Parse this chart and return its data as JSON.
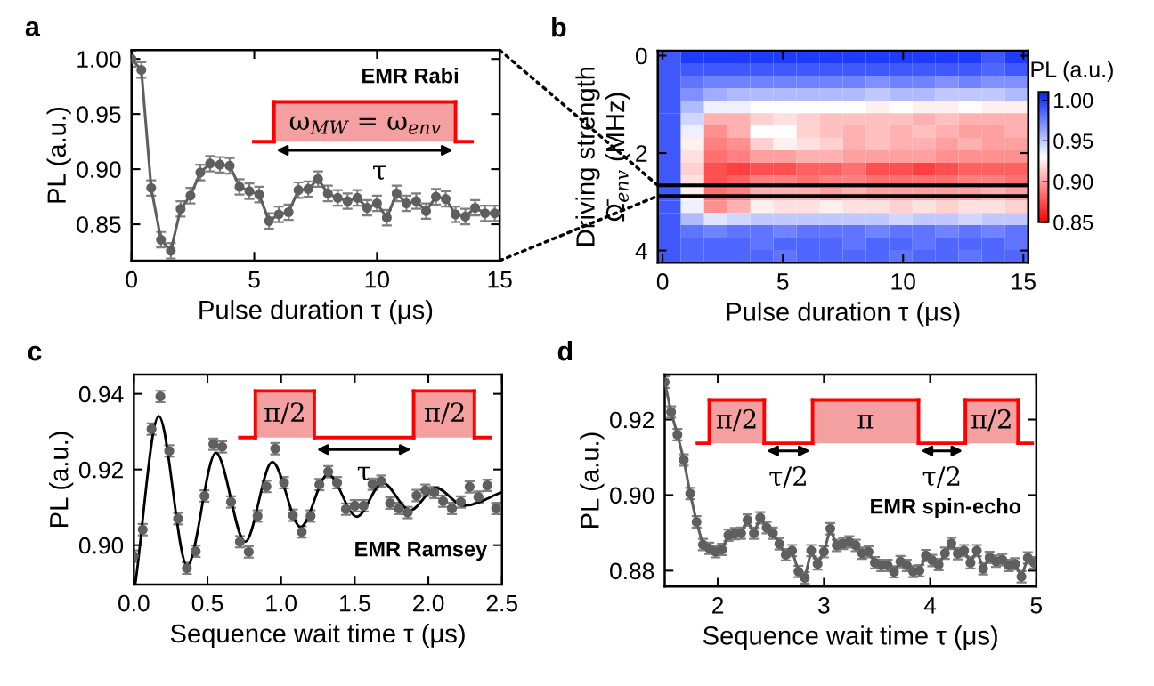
{
  "chart_data": [
    {
      "type": "line",
      "title": "a",
      "xlabel": "Pulse duration τ (μs)",
      "ylabel": "PL (a.u.)",
      "xlim": [
        0,
        15
      ],
      "xticks": [
        0,
        5,
        10,
        15
      ],
      "ylim": [
        0.817,
        1.008
      ],
      "yticks": [
        {
          "value": 0.85,
          "label": "0.85"
        },
        {
          "value": 0.9,
          "label": "0.90"
        },
        {
          "value": 0.95,
          "label": "0.95"
        },
        {
          "value": 1.0,
          "label": "1.00"
        }
      ],
      "marker": "circle",
      "grid": false,
      "legend": false,
      "annotations": [
        "EMR Rabi",
        "ω$_{MW}$ = ω$_{env}$",
        "τ"
      ],
      "series": [
        {
          "color": "#5f5f5f",
          "x": [
            0,
            0.4,
            0.8,
            1.2,
            1.6,
            2.0,
            2.4,
            2.8,
            3.2,
            3.6,
            4.0,
            4.4,
            4.8,
            5.2,
            5.6,
            6.0,
            6.4,
            6.8,
            7.2,
            7.6,
            8.0,
            8.4,
            8.8,
            9.2,
            9.6,
            10.0,
            10.4,
            10.8,
            11.2,
            11.6,
            12.0,
            12.4,
            12.8,
            13.2,
            13.6,
            14.0,
            14.4,
            14.8
          ],
          "values": [
            1.0,
            0.99,
            0.883,
            0.836,
            0.826,
            0.864,
            0.876,
            0.897,
            0.905,
            0.904,
            0.903,
            0.884,
            0.88,
            0.877,
            0.853,
            0.859,
            0.861,
            0.881,
            0.882,
            0.891,
            0.878,
            0.874,
            0.871,
            0.874,
            0.865,
            0.869,
            0.856,
            0.878,
            0.869,
            0.871,
            0.862,
            0.875,
            0.873,
            0.859,
            0.857,
            0.865,
            0.86,
            0.86
          ],
          "errors": [
            0.007,
            0.007,
            0.007,
            0.007,
            0.007,
            0.007,
            0.007,
            0.007,
            0.007,
            0.007,
            0.007,
            0.007,
            0.007,
            0.007,
            0.007,
            0.007,
            0.007,
            0.007,
            0.007,
            0.007,
            0.007,
            0.007,
            0.007,
            0.007,
            0.007,
            0.007,
            0.007,
            0.007,
            0.007,
            0.007,
            0.007,
            0.007,
            0.007,
            0.007,
            0.007,
            0.007,
            0.007,
            0.007
          ]
        }
      ]
    },
    {
      "type": "heatmap",
      "title": "b",
      "xlabel": "Pulse duration τ (μs)",
      "ylabel": "Driving strength\nΩ̄$_{env}$ (MHz)",
      "clabel": "PL (a.u.)",
      "xlim": [
        -0.2,
        15.2
      ],
      "xticks": [
        0,
        5,
        10,
        15
      ],
      "ylim": [
        4.25,
        -0.1
      ],
      "yticks": [
        0,
        2,
        4
      ],
      "clim": [
        0.85,
        1.01
      ],
      "cticks": [
        {
          "value": 0.85,
          "label": "0.85"
        },
        {
          "value": 0.9,
          "label": "0.90"
        },
        {
          "value": 0.95,
          "label": "0.95"
        },
        {
          "value": 1.0,
          "label": "1.00"
        }
      ],
      "ref_lines": [
        {
          "axis": "y",
          "value": 2.66,
          "color": "#000000"
        },
        {
          "axis": "y",
          "value": 2.88,
          "color": "#000000"
        }
      ],
      "x": [
        0.28,
        1.24,
        2.21,
        3.17,
        4.13,
        5.09,
        6.06,
        7.02,
        7.98,
        8.94,
        9.91,
        10.87,
        11.83,
        12.79,
        13.76,
        14.72
      ],
      "y": [
        0.03,
        0.28,
        0.54,
        0.79,
        1.05,
        1.31,
        1.56,
        1.82,
        2.07,
        2.33,
        2.58,
        2.84,
        3.1,
        3.35,
        3.61,
        3.86,
        4.12
      ],
      "cells": [
        [
          0.99,
          1.0,
          1.0,
          1.0,
          1.0,
          1.0,
          1.0,
          1.0,
          1.0,
          1.0,
          1.0,
          1.0,
          1.0,
          1.0,
          0.99,
          1.0
        ],
        [
          0.99,
          0.99,
          0.99,
          0.99,
          0.99,
          0.99,
          0.99,
          0.99,
          0.99,
          0.99,
          0.99,
          0.99,
          0.99,
          0.99,
          0.985,
          0.99
        ],
        [
          0.99,
          0.98,
          0.975,
          0.975,
          0.975,
          0.975,
          0.975,
          0.975,
          0.975,
          0.97,
          0.975,
          0.975,
          0.97,
          0.975,
          0.97,
          0.97
        ],
        [
          0.99,
          0.97,
          0.96,
          0.955,
          0.955,
          0.955,
          0.955,
          0.955,
          0.955,
          0.95,
          0.955,
          0.955,
          0.95,
          0.95,
          0.95,
          0.955
        ],
        [
          0.99,
          0.955,
          0.935,
          0.935,
          0.93,
          0.93,
          0.93,
          0.93,
          0.93,
          0.925,
          0.93,
          0.925,
          0.925,
          0.93,
          0.925,
          0.925
        ],
        [
          0.99,
          0.945,
          0.905,
          0.905,
          0.915,
          0.92,
          0.915,
          0.91,
          0.91,
          0.91,
          0.91,
          0.905,
          0.91,
          0.905,
          0.905,
          0.905
        ],
        [
          0.99,
          0.935,
          0.895,
          0.905,
          0.93,
          0.93,
          0.915,
          0.91,
          0.905,
          0.91,
          0.905,
          0.91,
          0.905,
          0.9,
          0.9,
          0.905
        ],
        [
          0.99,
          0.925,
          0.89,
          0.895,
          0.915,
          0.925,
          0.92,
          0.915,
          0.905,
          0.91,
          0.905,
          0.905,
          0.9,
          0.905,
          0.9,
          0.9
        ],
        [
          0.99,
          0.92,
          0.885,
          0.89,
          0.9,
          0.9,
          0.905,
          0.905,
          0.9,
          0.9,
          0.9,
          0.9,
          0.895,
          0.895,
          0.895,
          0.895
        ],
        [
          0.99,
          0.915,
          0.875,
          0.87,
          0.875,
          0.875,
          0.88,
          0.88,
          0.885,
          0.875,
          0.875,
          0.87,
          0.875,
          0.88,
          0.88,
          0.88
        ],
        [
          0.99,
          0.92,
          0.875,
          0.88,
          0.89,
          0.89,
          0.885,
          0.89,
          0.89,
          0.885,
          0.885,
          0.885,
          0.885,
          0.89,
          0.89,
          0.885
        ],
        [
          0.99,
          0.925,
          0.885,
          0.89,
          0.905,
          0.905,
          0.905,
          0.9,
          0.905,
          0.9,
          0.9,
          0.9,
          0.9,
          0.9,
          0.905,
          0.9
        ],
        [
          0.99,
          0.935,
          0.895,
          0.905,
          0.925,
          0.92,
          0.92,
          0.925,
          0.92,
          0.92,
          0.915,
          0.92,
          0.915,
          0.92,
          0.92,
          0.915
        ],
        [
          0.99,
          0.955,
          0.94,
          0.945,
          0.95,
          0.95,
          0.95,
          0.95,
          0.95,
          0.95,
          0.945,
          0.95,
          0.95,
          0.945,
          0.95,
          0.95
        ],
        [
          0.99,
          0.98,
          0.975,
          0.98,
          0.98,
          0.975,
          0.98,
          0.98,
          0.98,
          0.975,
          0.98,
          0.98,
          0.975,
          0.98,
          0.975,
          0.98
        ],
        [
          0.99,
          0.985,
          0.985,
          0.985,
          0.98,
          0.985,
          0.985,
          0.985,
          0.98,
          0.985,
          0.985,
          0.98,
          0.985,
          0.985,
          0.985,
          0.98
        ],
        [
          0.99,
          0.985,
          0.985,
          0.985,
          0.985,
          0.98,
          0.985,
          0.985,
          0.985,
          0.985,
          0.98,
          0.985,
          0.985,
          0.98,
          0.985,
          0.985
        ]
      ]
    },
    {
      "type": "scatter",
      "title": "c",
      "xlabel": "Sequence wait time τ (μs)",
      "ylabel": "PL (a.u.)",
      "xlim": [
        0,
        2.5
      ],
      "xticks": [
        {
          "value": 0,
          "label": "0.0"
        },
        {
          "value": 0.5,
          "label": "0.5"
        },
        {
          "value": 1.0,
          "label": "1.0"
        },
        {
          "value": 1.5,
          "label": "1.5"
        },
        {
          "value": 2.0,
          "label": "2.0"
        },
        {
          "value": 2.5,
          "label": "2.5"
        }
      ],
      "ylim": [
        0.8896,
        0.9451
      ],
      "yticks": [
        {
          "value": 0.9,
          "label": "0.90"
        },
        0.92,
        0.94
      ],
      "marker": "circle",
      "grid": false,
      "legend": false,
      "annotations": [
        "EMR Ramsey",
        "π/2",
        "π/2",
        "τ"
      ],
      "series": [
        {
          "type": "scatter",
          "color": "#5f5f5f",
          "x": [
            0.0,
            0.06,
            0.12,
            0.18,
            0.24,
            0.3,
            0.36,
            0.42,
            0.48,
            0.54,
            0.6,
            0.66,
            0.72,
            0.78,
            0.84,
            0.9,
            0.96,
            1.02,
            1.08,
            1.14,
            1.2,
            1.26,
            1.32,
            1.38,
            1.44,
            1.5,
            1.56,
            1.62,
            1.68,
            1.74,
            1.8,
            1.86,
            1.92,
            1.98,
            2.04,
            2.1,
            2.16,
            2.22,
            2.28,
            2.34,
            2.4,
            2.46
          ],
          "values": [
            0.8971,
            0.9041,
            0.9307,
            0.9393,
            0.9249,
            0.907,
            0.8939,
            0.8984,
            0.913,
            0.9267,
            0.926,
            0.9114,
            0.9009,
            0.8982,
            0.9077,
            0.9155,
            0.9255,
            0.9165,
            0.9079,
            0.9035,
            0.9077,
            0.916,
            0.9194,
            0.9165,
            0.9095,
            0.9104,
            0.9104,
            0.9161,
            0.9169,
            0.9111,
            0.9097,
            0.9086,
            0.9131,
            0.9145,
            0.9139,
            0.9116,
            0.9097,
            0.9114,
            0.9154,
            0.9127,
            0.9158,
            0.9097
          ],
          "errors": [
            0.0015,
            0.0015,
            0.0015,
            0.0015,
            0.0015,
            0.0015,
            0.0015,
            0.0015,
            0.0015,
            0.0015,
            0.0015,
            0.0015,
            0.0015,
            0.0015,
            0.0015,
            0.0015,
            0.0015,
            0.0015,
            0.0015,
            0.0015,
            0.0015,
            0.0015,
            0.0015,
            0.0015,
            0.0015,
            0.0015,
            0.0015,
            0.0015,
            0.0015,
            0.0015,
            0.0015,
            0.0015,
            0.0015,
            0.0015,
            0.0015,
            0.0015,
            0.0015,
            0.0015,
            0.0015,
            0.0015,
            0.0015,
            0.0015
          ]
        },
        {
          "type": "line",
          "marker": "none",
          "color": "#000000",
          "x": [
            0.01,
            0.169,
            0.362,
            0.557,
            0.756,
            0.94,
            1.132,
            1.318,
            1.515,
            1.689,
            1.875,
            2.053,
            2.241,
            2.5
          ],
          "values": [
            0.8898,
            0.9341,
            0.8946,
            0.9244,
            0.9009,
            0.922,
            0.9048,
            0.9187,
            0.9075,
            0.9165,
            0.9092,
            0.9151,
            0.9104,
            0.914
          ]
        }
      ]
    },
    {
      "type": "line",
      "title": "d",
      "xlabel": "Sequence wait time τ (μs)",
      "ylabel": "PL (a.u.)",
      "xlim": [
        1.5,
        5
      ],
      "xticks": [
        2,
        3,
        4,
        5
      ],
      "ylim": [
        0.8758,
        0.9319
      ],
      "yticks": [
        {
          "value": 0.88,
          "label": "0.88"
        },
        {
          "value": 0.9,
          "label": "0.90"
        },
        {
          "value": 0.92,
          "label": "0.92"
        }
      ],
      "marker": "circle",
      "grid": false,
      "legend": false,
      "annotations": [
        "EMR spin-echo",
        "π/2",
        "π",
        "π/2",
        "τ/2",
        "τ/2"
      ],
      "series": [
        {
          "color": "#5f5f5f",
          "x": [
            1.5,
            1.56,
            1.62,
            1.68,
            1.74,
            1.8,
            1.86,
            1.92,
            1.98,
            2.04,
            2.1,
            2.16,
            2.22,
            2.28,
            2.34,
            2.4,
            2.46,
            2.52,
            2.58,
            2.64,
            2.7,
            2.76,
            2.82,
            2.88,
            2.94,
            3.0,
            3.06,
            3.12,
            3.18,
            3.24,
            3.3,
            3.36,
            3.42,
            3.48,
            3.54,
            3.6,
            3.66,
            3.72,
            3.78,
            3.84,
            3.9,
            3.96,
            4.02,
            4.08,
            4.14,
            4.2,
            4.26,
            4.32,
            4.38,
            4.44,
            4.5,
            4.56,
            4.62,
            4.68,
            4.74,
            4.8,
            4.86,
            4.92,
            4.98
          ],
          "values": [
            0.9299,
            0.922,
            0.916,
            0.9093,
            0.9004,
            0.8929,
            0.8869,
            0.8859,
            0.885,
            0.8856,
            0.8894,
            0.8898,
            0.8899,
            0.8934,
            0.8899,
            0.894,
            0.8914,
            0.8899,
            0.8871,
            0.8842,
            0.8853,
            0.8798,
            0.8781,
            0.8853,
            0.8818,
            0.885,
            0.8911,
            0.8867,
            0.8872,
            0.8876,
            0.8867,
            0.8846,
            0.885,
            0.8821,
            0.8814,
            0.8814,
            0.8797,
            0.8824,
            0.8814,
            0.8798,
            0.88,
            0.884,
            0.8827,
            0.8816,
            0.8846,
            0.8872,
            0.8845,
            0.8853,
            0.8821,
            0.8853,
            0.8805,
            0.8835,
            0.8825,
            0.8829,
            0.8814,
            0.8818,
            0.8784,
            0.8834,
            0.8821
          ],
          "errors": [
            0.0015,
            0.0015,
            0.0015,
            0.0015,
            0.0015,
            0.0015,
            0.0015,
            0.0015,
            0.0015,
            0.0015,
            0.0015,
            0.0015,
            0.0015,
            0.0015,
            0.0015,
            0.0015,
            0.0015,
            0.0015,
            0.0015,
            0.0015,
            0.0015,
            0.0015,
            0.0015,
            0.0015,
            0.0015,
            0.0015,
            0.0015,
            0.0015,
            0.0015,
            0.0015,
            0.0015,
            0.0015,
            0.0015,
            0.0015,
            0.0015,
            0.0015,
            0.0015,
            0.0015,
            0.0015,
            0.0015,
            0.0015,
            0.0015,
            0.0015,
            0.0015,
            0.0015,
            0.0015,
            0.0015,
            0.0015,
            0.0015,
            0.0015,
            0.0015,
            0.0015,
            0.0015,
            0.0015,
            0.0015,
            0.0015,
            0.0015,
            0.0015,
            0.0015
          ]
        }
      ]
    }
  ]
}
